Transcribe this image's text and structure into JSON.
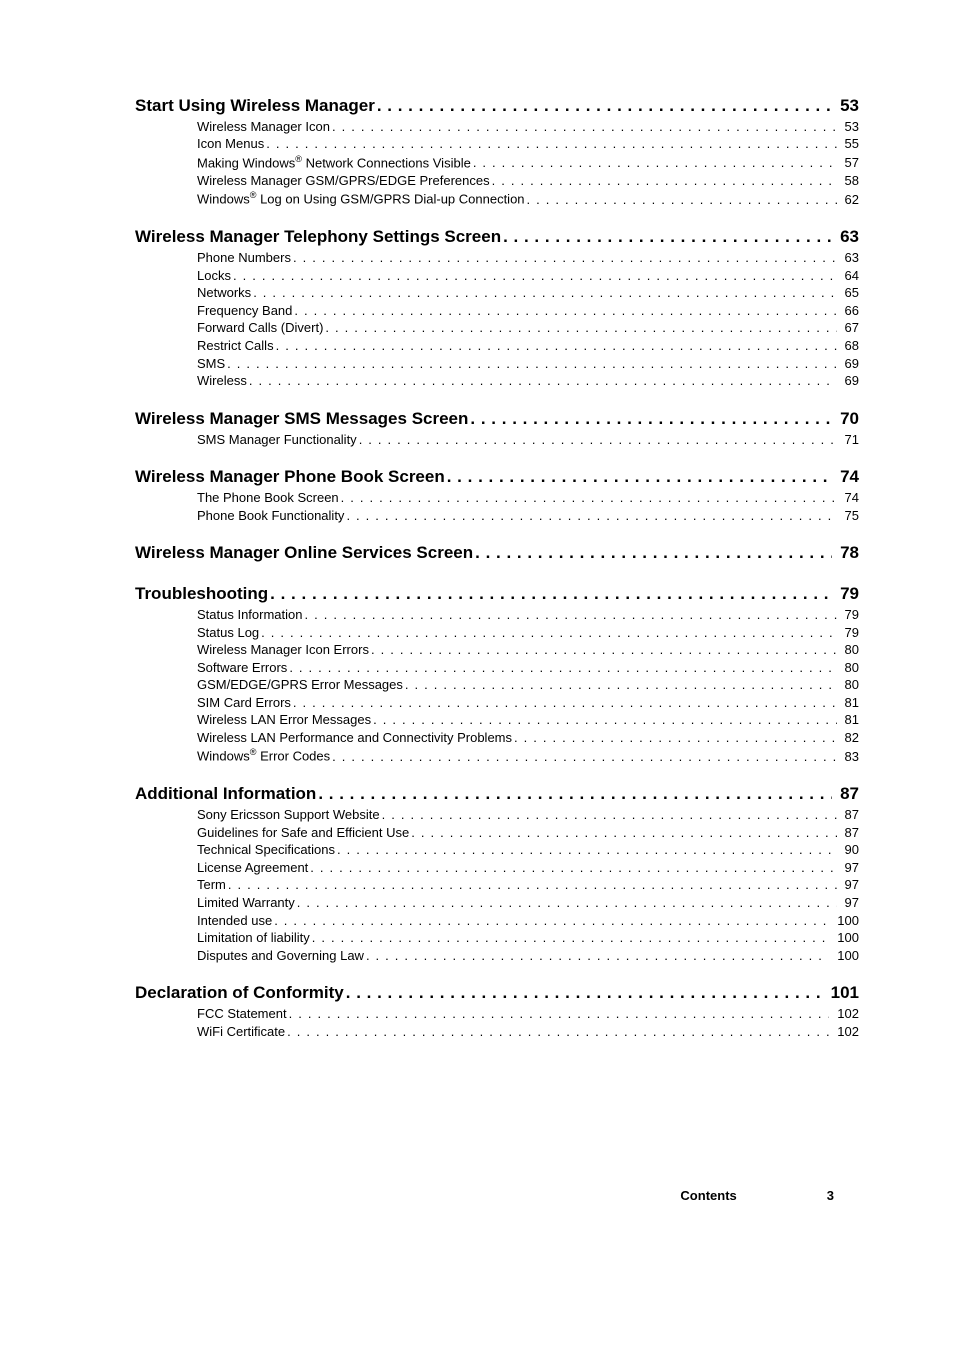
{
  "sections": [
    {
      "chapter": {
        "title": "Start Using Wireless Manager",
        "page": "53"
      },
      "entries": [
        {
          "title": "Wireless Manager Icon",
          "page": "53"
        },
        {
          "title": "Icon Menus",
          "page": "55"
        },
        {
          "title": "Making Windows|SUP|®|/SUP| Network Connections Visible",
          "page": "57"
        },
        {
          "title": "Wireless Manager GSM/GPRS/EDGE Preferences",
          "page": "58"
        },
        {
          "title": "Windows|SUP|®|/SUP| Log on Using GSM/GPRS Dial-up Connection",
          "page": "62"
        }
      ]
    },
    {
      "chapter": {
        "title": "Wireless Manager Telephony Settings Screen",
        "page": "63"
      },
      "entries": [
        {
          "title": "Phone Numbers",
          "page": "63"
        },
        {
          "title": "Locks",
          "page": "64"
        },
        {
          "title": "Networks",
          "page": "65"
        },
        {
          "title": "Frequency Band",
          "page": "66"
        },
        {
          "title": "Forward Calls (Divert)",
          "page": "67"
        },
        {
          "title": "Restrict Calls",
          "page": "68"
        },
        {
          "title": "SMS",
          "page": "69"
        },
        {
          "title": "Wireless",
          "page": "69"
        }
      ]
    },
    {
      "chapter": {
        "title": "Wireless Manager SMS Messages Screen",
        "page": "70"
      },
      "entries": [
        {
          "title": "SMS Manager Functionality",
          "page": "71"
        }
      ]
    },
    {
      "chapter": {
        "title": "Wireless Manager Phone Book Screen",
        "page": "74"
      },
      "entries": [
        {
          "title": "The Phone Book Screen",
          "page": "74"
        },
        {
          "title": "Phone Book Functionality",
          "page": "75"
        }
      ]
    },
    {
      "chapter": {
        "title": "Wireless Manager Online Services Screen",
        "page": "78"
      },
      "entries": []
    },
    {
      "chapter": {
        "title": "Troubleshooting",
        "page": "79"
      },
      "entries": [
        {
          "title": "Status Information",
          "page": "79"
        },
        {
          "title": "Status Log",
          "page": "79"
        },
        {
          "title": "Wireless Manager Icon Errors",
          "page": "80"
        },
        {
          "title": "Software Errors",
          "page": "80"
        },
        {
          "title": "GSM/EDGE/GPRS Error Messages",
          "page": "80"
        },
        {
          "title": "SIM Card Errors",
          "page": "81"
        },
        {
          "title": "Wireless LAN Error Messages",
          "page": "81"
        },
        {
          "title": "Wireless LAN Performance and Connectivity Problems",
          "page": "82"
        },
        {
          "title": "Windows|SUP|®|/SUP| Error Codes",
          "page": "83"
        }
      ]
    },
    {
      "chapter": {
        "title": "Additional Information",
        "page": "87"
      },
      "entries": [
        {
          "title": "Sony Ericsson Support Website",
          "page": "87"
        },
        {
          "title": "Guidelines for Safe and Efficient Use",
          "page": "87"
        },
        {
          "title": "Technical Specifications",
          "page": "90"
        },
        {
          "title": "License Agreement",
          "page": "97"
        },
        {
          "title": "Term",
          "page": "97"
        },
        {
          "title": "Limited Warranty",
          "page": "97"
        },
        {
          "title": "Intended use",
          "page": "100"
        },
        {
          "title": "Limitation of liability",
          "page": "100"
        },
        {
          "title": "Disputes and Governing Law",
          "page": "100"
        }
      ]
    },
    {
      "chapter": {
        "title": "Declaration of Conformity",
        "page": "101"
      },
      "entries": [
        {
          "title": "FCC Statement",
          "page": "102"
        },
        {
          "title": "WiFi Certificate",
          "page": "102"
        }
      ]
    }
  ],
  "footer": {
    "label": "Contents",
    "page": "3"
  }
}
